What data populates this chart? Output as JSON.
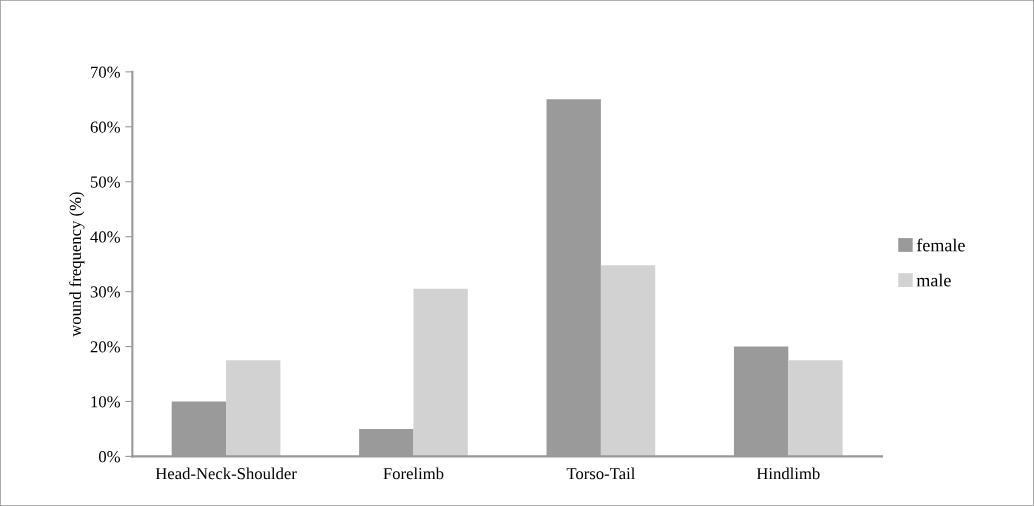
{
  "chart_data": {
    "type": "bar",
    "ylabel": "wound frequency (%)",
    "categories": [
      "Head-Neck-Shoulder",
      "Forelimb",
      "Torso-Tail",
      "Hindlimb"
    ],
    "series": [
      {
        "name": "female",
        "color": "#9a9a9a",
        "values": [
          10,
          5,
          65,
          20
        ]
      },
      {
        "name": "male",
        "color": "#d2d2d2",
        "values": [
          17.5,
          30.5,
          34.8,
          17.5
        ]
      }
    ],
    "ylim": [
      0,
      70
    ],
    "yticks": [
      {
        "value": 0,
        "label": "0%"
      },
      {
        "value": 10,
        "label": "10%"
      },
      {
        "value": 20,
        "label": "20%"
      },
      {
        "value": 30,
        "label": "30%"
      },
      {
        "value": 40,
        "label": "40%"
      },
      {
        "value": 50,
        "label": "50%"
      },
      {
        "value": 60,
        "label": "60%"
      },
      {
        "value": 70,
        "label": "70%"
      }
    ],
    "grid": false,
    "legend": "right"
  }
}
